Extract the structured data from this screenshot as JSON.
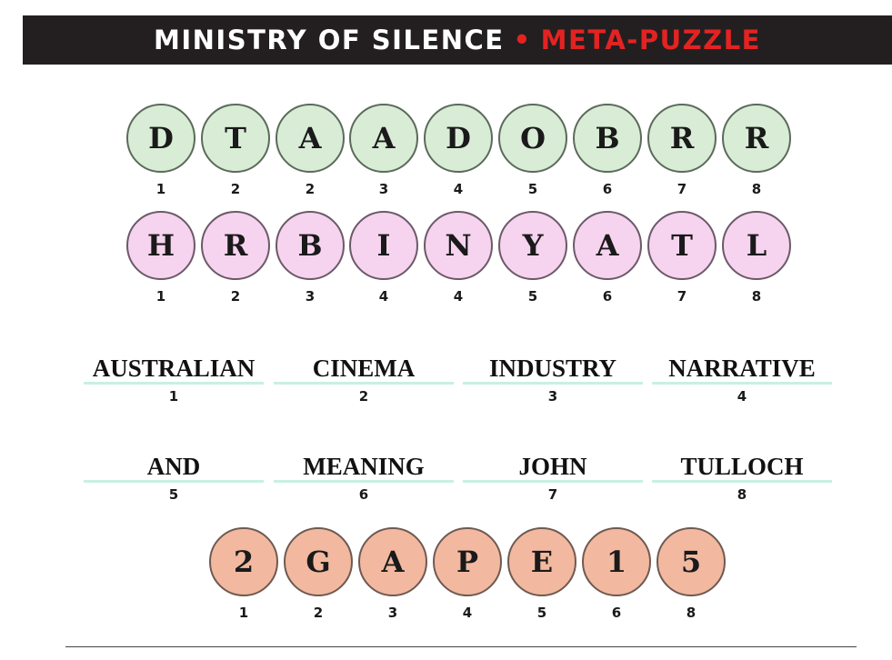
{
  "header": {
    "title": "MINISTRY OF SILENCE",
    "separator": "•",
    "subtitle": "META-PUZZLE",
    "accent_color": "#e32322",
    "background_color": "#231f20"
  },
  "row_green": {
    "color": "#d8ecd6",
    "tiles": [
      {
        "letter": "D",
        "num": "1"
      },
      {
        "letter": "T",
        "num": "2"
      },
      {
        "letter": "A",
        "num": "2"
      },
      {
        "letter": "A",
        "num": "3"
      },
      {
        "letter": "D",
        "num": "4"
      },
      {
        "letter": "O",
        "num": "5"
      },
      {
        "letter": "B",
        "num": "6"
      },
      {
        "letter": "R",
        "num": "7"
      },
      {
        "letter": "R",
        "num": "8"
      }
    ]
  },
  "row_pink": {
    "color": "#f6d3ef",
    "tiles": [
      {
        "letter": "H",
        "num": "1"
      },
      {
        "letter": "R",
        "num": "2"
      },
      {
        "letter": "B",
        "num": "3"
      },
      {
        "letter": "I",
        "num": "4"
      },
      {
        "letter": "N",
        "num": "4"
      },
      {
        "letter": "Y",
        "num": "5"
      },
      {
        "letter": "A",
        "num": "6"
      },
      {
        "letter": "T",
        "num": "7"
      },
      {
        "letter": "L",
        "num": "8"
      }
    ]
  },
  "words_row1": [
    {
      "word": "AUSTRALIAN",
      "num": "1"
    },
    {
      "word": "CINEMA",
      "num": "2"
    },
    {
      "word": "INDUSTRY",
      "num": "3"
    },
    {
      "word": "NARRATIVE",
      "num": "4"
    }
  ],
  "words_row2": [
    {
      "word": "AND",
      "num": "5"
    },
    {
      "word": "MEANING",
      "num": "6"
    },
    {
      "word": "JOHN",
      "num": "7"
    },
    {
      "word": "TULLOCH",
      "num": "8"
    }
  ],
  "row_orange": {
    "color": "#f2b9a0",
    "tiles": [
      {
        "letter": "2",
        "num": "1"
      },
      {
        "letter": "G",
        "num": "2"
      },
      {
        "letter": "A",
        "num": "3"
      },
      {
        "letter": "P",
        "num": "4"
      },
      {
        "letter": "E",
        "num": "5"
      },
      {
        "letter": "1",
        "num": "6"
      },
      {
        "letter": "5",
        "num": "8"
      }
    ]
  },
  "word_underline_color": "#c8f0e0"
}
